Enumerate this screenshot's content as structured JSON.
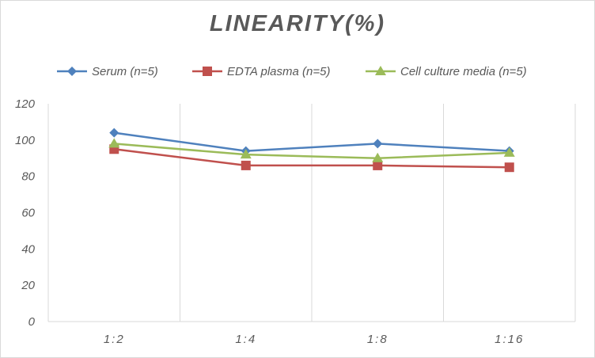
{
  "chart_data": {
    "type": "line",
    "title": "LINEARITY(%)",
    "xlabel": "",
    "ylabel": "",
    "categories": [
      "1:2",
      "1:4",
      "1:8",
      "1:16"
    ],
    "ylim": [
      0,
      120
    ],
    "yticks": [
      0,
      20,
      40,
      60,
      80,
      100,
      120
    ],
    "grid": "vertical",
    "legend_position": "top",
    "series": [
      {
        "name": "Serum (n=5)",
        "values": [
          104,
          94,
          98,
          94
        ],
        "color": "#4f81bd",
        "marker": "diamond"
      },
      {
        "name": "EDTA plasma (n=5)",
        "values": [
          95,
          86,
          86,
          85
        ],
        "color": "#c0504d",
        "marker": "square"
      },
      {
        "name": "Cell culture media (n=5)",
        "values": [
          98,
          92,
          90,
          93
        ],
        "color": "#9bbb59",
        "marker": "triangle"
      }
    ]
  }
}
